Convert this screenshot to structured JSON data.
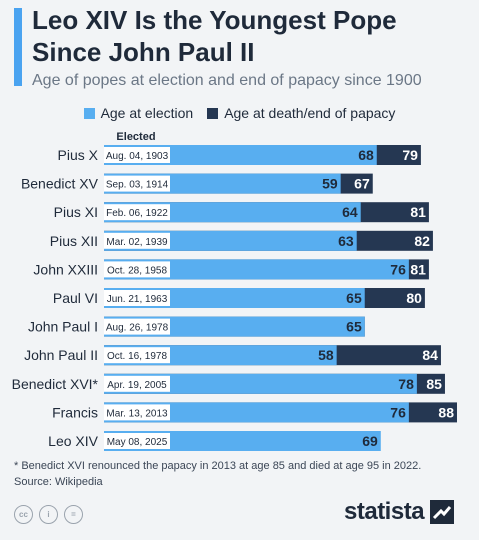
{
  "title_line1": "Leo XIV Is the Youngest Pope",
  "title_line2": "Since John Paul II",
  "subtitle": "Age of popes at election and end of papacy since 1900",
  "legend": [
    {
      "label": "Age at election",
      "color": "#58aef0"
    },
    {
      "label": "Age at death/end of papacy",
      "color": "#253752"
    }
  ],
  "column_header": "Elected",
  "footnote_line1": "* Benedict XVI renounced the papacy in 2013 at age 85 and died at age 95 in 2022.",
  "footnote_line2": "Source: Wikipedia",
  "logo_text": "statista",
  "chart_data": {
    "type": "bar",
    "categories": [
      "Pius X",
      "Benedict XV",
      "Pius XI",
      "Pius XII",
      "John XXIII",
      "Paul VI",
      "John Paul I",
      "John Paul II",
      "Benedict XVI*",
      "Francis",
      "Leo XIV"
    ],
    "dates": [
      "Aug. 04, 1903",
      "Sep. 03, 1914",
      "Feb. 06, 1922",
      "Mar. 02, 1939",
      "Oct. 28, 1958",
      "Jun. 21, 1963",
      "Aug. 26, 1978",
      "Oct. 16, 1978",
      "Apr. 19, 2005",
      "Mar. 13, 2013",
      "May 08, 2025"
    ],
    "series": [
      {
        "name": "Age at election",
        "values": [
          68,
          59,
          64,
          63,
          76,
          65,
          65,
          58,
          78,
          76,
          69
        ]
      },
      {
        "name": "Age at death/end of papacy",
        "values": [
          79,
          67,
          81,
          82,
          81,
          80,
          65,
          84,
          85,
          88,
          null
        ]
      }
    ],
    "colors": {
      "election": "#58aef0",
      "end": "#253752",
      "date_bg": "#ffffff"
    }
  }
}
